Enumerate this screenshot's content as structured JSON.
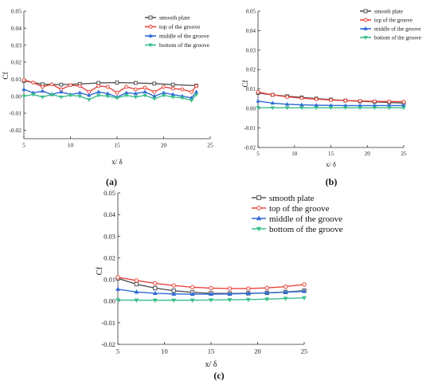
{
  "chart_data": [
    {
      "type": "line",
      "panel_label": "(a)",
      "xlabel": "x/ δ",
      "ylabel": "Cf",
      "xlim": [
        5,
        25
      ],
      "ylim": [
        -0.025,
        0.05
      ],
      "xticks": [
        5,
        10,
        15,
        20,
        25
      ],
      "yticks": [
        -0.02,
        -0.01,
        0.0,
        0.01,
        0.02,
        0.03,
        0.04,
        0.05
      ],
      "xtick_labels": [
        "5",
        "10",
        "15",
        "20",
        "25"
      ],
      "ytick_labels": [
        "-0.02",
        "-0.01",
        "0.00",
        "0.01",
        "0.02",
        "0.03",
        "0.04",
        "0.05"
      ],
      "legend_position": "top-right",
      "series": [
        {
          "name": "smooth plate",
          "color": "#555555",
          "marker": "square",
          "x": [
            5,
            7,
            9,
            11,
            13,
            15,
            17,
            19,
            21,
            23.5
          ],
          "y": [
            0.009,
            0.007,
            0.0068,
            0.0072,
            0.0078,
            0.008,
            0.0078,
            0.0074,
            0.0068,
            0.0062
          ]
        },
        {
          "name": "top of the groove",
          "color": "#e8453c",
          "marker": "circle",
          "x": [
            5,
            6,
            7,
            8,
            9,
            10,
            11,
            12,
            13,
            14,
            15,
            16,
            17,
            18,
            19,
            20,
            21,
            22,
            23,
            23.5
          ],
          "y": [
            0.0095,
            0.008,
            0.0055,
            0.007,
            0.004,
            0.0065,
            0.006,
            0.0025,
            0.006,
            0.0055,
            0.002,
            0.0055,
            0.004,
            0.005,
            0.0025,
            0.0055,
            0.0045,
            0.004,
            0.0025,
            0.006
          ]
        },
        {
          "name": "middle of the groove",
          "color": "#2f6bd6",
          "marker": "triangle",
          "x": [
            5,
            6,
            7,
            8,
            9,
            10,
            11,
            12,
            13,
            14,
            15,
            16,
            17,
            18,
            19,
            20,
            21,
            22,
            23,
            23.5
          ],
          "y": [
            0.004,
            0.002,
            0.003,
            0.001,
            0.0025,
            0.001,
            0.002,
            0.0005,
            0.0025,
            0.0015,
            -0.0005,
            0.002,
            0.0015,
            0.0025,
            0.0,
            0.002,
            0.001,
            0.0,
            -0.001,
            0.0025
          ]
        },
        {
          "name": "bottom of the groove",
          "color": "#3cbf8a",
          "marker": "triangle-down",
          "x": [
            5,
            6,
            7,
            8,
            9,
            10,
            11,
            12,
            13,
            14,
            15,
            16,
            17,
            18,
            19,
            20,
            21,
            22,
            23,
            23.5
          ],
          "y": [
            0.0,
            0.001,
            -0.0005,
            0.001,
            -0.0005,
            0.0005,
            0.0,
            -0.002,
            0.0005,
            0.0,
            -0.001,
            0.0005,
            -0.0005,
            0.0005,
            -0.0015,
            0.0005,
            -0.0005,
            -0.001,
            -0.0025,
            0.001
          ]
        }
      ]
    },
    {
      "type": "line",
      "panel_label": "(b)",
      "xlabel": "x/ δ",
      "ylabel": "Cf",
      "xlim": [
        5,
        25
      ],
      "ylim": [
        -0.02,
        0.05
      ],
      "xticks": [
        5,
        10,
        15,
        20,
        25
      ],
      "yticks": [
        -0.02,
        -0.01,
        0.0,
        0.01,
        0.02,
        0.03,
        0.04,
        0.05
      ],
      "xtick_labels": [
        "5",
        "10",
        "15",
        "20",
        "25"
      ],
      "ytick_labels": [
        "-0.02",
        "-0.01",
        "0.00",
        "0.01",
        "0.02",
        "0.03",
        "0.04",
        "0.05"
      ],
      "legend_position": "top-right",
      "series": [
        {
          "name": "smooth plate",
          "color": "#555555",
          "marker": "square",
          "x": [
            5,
            7,
            9,
            11,
            13,
            15,
            17,
            19,
            21,
            23,
            25
          ],
          "y": [
            0.008,
            0.007,
            0.0063,
            0.0057,
            0.0051,
            0.0046,
            0.0041,
            0.0037,
            0.0034,
            0.0031,
            0.0028
          ]
        },
        {
          "name": "top of the groove",
          "color": "#e8453c",
          "marker": "circle",
          "x": [
            5,
            7,
            9,
            11,
            13,
            15,
            17,
            19,
            21,
            23,
            25
          ],
          "y": [
            0.0085,
            0.007,
            0.006,
            0.0053,
            0.0048,
            0.0044,
            0.0041,
            0.0039,
            0.0037,
            0.0036,
            0.0035
          ]
        },
        {
          "name": "middle of the groove",
          "color": "#2f6bd6",
          "marker": "triangle",
          "x": [
            5,
            7,
            9,
            11,
            13,
            15,
            17,
            19,
            21,
            23,
            25
          ],
          "y": [
            0.0038,
            0.0028,
            0.0022,
            0.0019,
            0.0017,
            0.0016,
            0.0015,
            0.0015,
            0.0015,
            0.0015,
            0.0015
          ]
        },
        {
          "name": "bottom of the groove",
          "color": "#3cbf8a",
          "marker": "triangle-down",
          "x": [
            5,
            7,
            9,
            11,
            13,
            15,
            17,
            19,
            21,
            23,
            25
          ],
          "y": [
            0.0005,
            0.0004,
            0.0004,
            0.0004,
            0.0004,
            0.0004,
            0.0004,
            0.0004,
            0.0004,
            0.0004,
            0.0004
          ]
        }
      ]
    },
    {
      "type": "line",
      "panel_label": "(c)",
      "xlabel": "x/ δ",
      "ylabel": "Cf",
      "xlim": [
        5,
        25
      ],
      "ylim": [
        -0.02,
        0.05
      ],
      "xticks": [
        5,
        10,
        15,
        20,
        25
      ],
      "yticks": [
        -0.02,
        -0.01,
        0.0,
        0.01,
        0.02,
        0.03,
        0.04,
        0.05
      ],
      "xtick_labels": [
        "5",
        "10",
        "15",
        "20",
        "25"
      ],
      "ytick_labels": [
        "-0.02",
        "-0.01",
        "0.00",
        "0.01",
        "0.02",
        "0.03",
        "0.04",
        "0.05"
      ],
      "legend_position": "top-right",
      "series": [
        {
          "name": "smooth plate",
          "color": "#555555",
          "marker": "square",
          "x": [
            5,
            7,
            9,
            11,
            13,
            15,
            17,
            19,
            21,
            23,
            25
          ],
          "y": [
            0.0105,
            0.0078,
            0.006,
            0.0048,
            0.004,
            0.0036,
            0.0035,
            0.0036,
            0.0038,
            0.0042,
            0.0048
          ]
        },
        {
          "name": "top of the groove",
          "color": "#e8453c",
          "marker": "circle",
          "x": [
            5,
            7,
            9,
            11,
            13,
            15,
            17,
            19,
            21,
            23,
            25
          ],
          "y": [
            0.011,
            0.0095,
            0.0082,
            0.0072,
            0.0064,
            0.006,
            0.0058,
            0.0058,
            0.0061,
            0.0067,
            0.0077
          ]
        },
        {
          "name": "middle of the groove",
          "color": "#2f6bd6",
          "marker": "triangle",
          "x": [
            5,
            7,
            9,
            11,
            13,
            15,
            17,
            19,
            21,
            23,
            25
          ],
          "y": [
            0.0055,
            0.0042,
            0.0036,
            0.0033,
            0.0032,
            0.0032,
            0.0033,
            0.0035,
            0.0038,
            0.0041,
            0.0045
          ]
        },
        {
          "name": "bottom of the groove",
          "color": "#3cbf8a",
          "marker": "triangle-down",
          "x": [
            5,
            7,
            9,
            11,
            13,
            15,
            17,
            19,
            21,
            23,
            25
          ],
          "y": [
            0.0005,
            0.0004,
            0.0004,
            0.0004,
            0.0004,
            0.0005,
            0.0006,
            0.0007,
            0.0009,
            0.0012,
            0.0015
          ]
        }
      ]
    }
  ]
}
